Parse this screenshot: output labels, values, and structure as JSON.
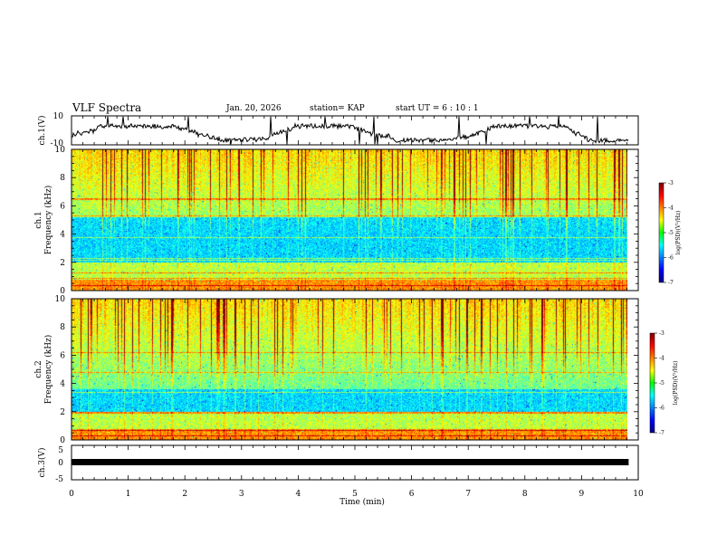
{
  "header": {
    "title": "VLF Spectra",
    "date": "Jan. 20, 2026",
    "station": "station= KAP",
    "start": "start UT =  6 : 10 : 1"
  },
  "chart_data": {
    "type": "heatmap",
    "x_label": "Time (min)",
    "x_range": [
      0,
      10
    ],
    "x_ticks": [
      "0",
      "1",
      "2",
      "3",
      "4",
      "5",
      "6",
      "7",
      "8",
      "9",
      "10"
    ],
    "panels": [
      {
        "id": "ch1-wave",
        "type": "line",
        "ylabel": "ch.1(V)",
        "ylim": [
          -10,
          10
        ],
        "y_ticks": [
          "10",
          "-10"
        ]
      },
      {
        "id": "ch1-spec",
        "type": "heatmap",
        "ylabel": "ch.1\nFrequency (kHz)",
        "ylim": [
          0,
          10
        ],
        "y_ticks": [
          "0",
          "2",
          "4",
          "6",
          "8",
          "10"
        ],
        "colorbar": {
          "label": "log(PSD)(V²/Hz)",
          "range": [
            -7,
            -3
          ],
          "ticks": [
            "-3",
            "-4",
            "-5",
            "-6",
            "-7"
          ]
        }
      },
      {
        "id": "ch2-spec",
        "type": "heatmap",
        "ylabel": "ch.2\nFrequency (kHz)",
        "ylim": [
          0,
          10
        ],
        "y_ticks": [
          "0",
          "2",
          "4",
          "6",
          "8",
          "10"
        ],
        "colorbar": {
          "label": "log(PSD)(V²/Hz)",
          "range": [
            -7,
            -3
          ],
          "ticks": [
            "-3",
            "-4",
            "-5",
            "-6",
            "-7"
          ]
        }
      },
      {
        "id": "ch3-wave",
        "type": "line",
        "ylabel": "ch.3(V)",
        "ylim": [
          -5,
          5
        ],
        "y_ticks": [
          "5",
          "0",
          "-5"
        ],
        "level": 0
      }
    ],
    "data_end_min": 9.83
  },
  "colors": {
    "axis": "#000000",
    "background": "#ffffff"
  }
}
